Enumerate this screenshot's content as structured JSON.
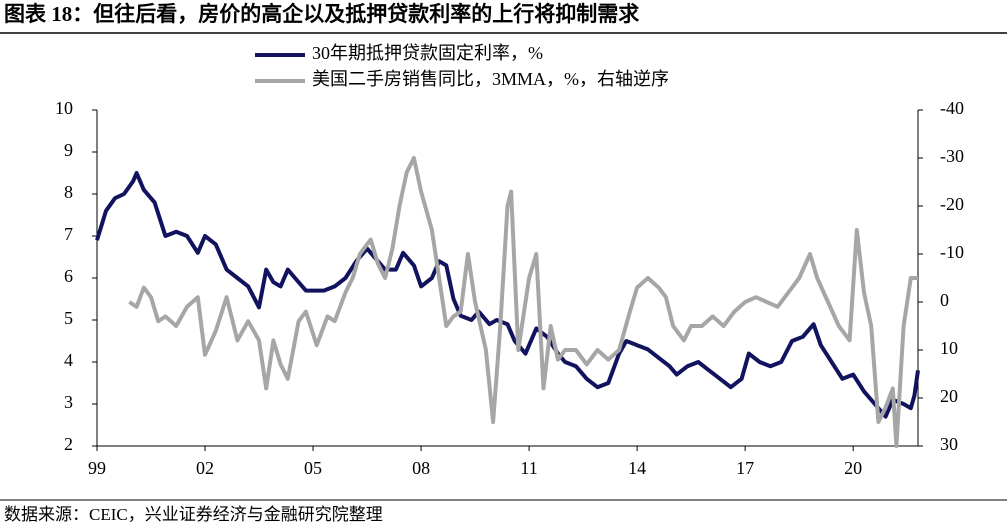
{
  "chart_data": {
    "type": "line",
    "title": "图表 18：但往后看，房价的高企以及抵押贷款利率的上行将抑制需求",
    "source": "数据来源：CEIC，兴业证券经济与金融研究院整理",
    "xlim": [
      1999,
      2021.8
    ],
    "xticks": [
      {
        "value": 1999,
        "label": "99"
      },
      {
        "value": 2002,
        "label": "02"
      },
      {
        "value": 2005,
        "label": "05"
      },
      {
        "value": 2008,
        "label": "08"
      },
      {
        "value": 2011,
        "label": "11"
      },
      {
        "value": 2014,
        "label": "14"
      },
      {
        "value": 2017,
        "label": "17"
      },
      {
        "value": 2020,
        "label": "20"
      }
    ],
    "ylim": [
      2,
      10
    ],
    "yticks": [
      2,
      3,
      4,
      5,
      6,
      7,
      8,
      9,
      10
    ],
    "y2lim": [
      30,
      -40
    ],
    "y2ticks": [
      30,
      20,
      10,
      0,
      -10,
      -20,
      -30,
      -40
    ],
    "series": [
      {
        "name": "30年期抵押贷款固定利率，%",
        "color": "#12135e",
        "axis": "y",
        "x": [
          1999.0,
          1999.25,
          1999.5,
          1999.75,
          2000.0,
          2000.1,
          2000.3,
          2000.6,
          2000.9,
          2001.2,
          2001.5,
          2001.8,
          2002.0,
          2002.3,
          2002.6,
          2002.9,
          2003.2,
          2003.5,
          2003.7,
          2003.9,
          2004.1,
          2004.3,
          2004.5,
          2004.8,
          2005.0,
          2005.3,
          2005.6,
          2005.9,
          2006.2,
          2006.5,
          2006.8,
          2007.0,
          2007.3,
          2007.5,
          2007.8,
          2008.0,
          2008.3,
          2008.5,
          2008.7,
          2008.9,
          2009.1,
          2009.4,
          2009.6,
          2009.9,
          2010.1,
          2010.4,
          2010.6,
          2010.9,
          2011.2,
          2011.5,
          2011.8,
          2012.0,
          2012.3,
          2012.6,
          2012.9,
          2013.2,
          2013.5,
          2013.7,
          2014.0,
          2014.3,
          2014.6,
          2014.9,
          2015.1,
          2015.4,
          2015.7,
          2016.0,
          2016.3,
          2016.6,
          2016.9,
          2017.1,
          2017.4,
          2017.7,
          2018.0,
          2018.3,
          2018.6,
          2018.9,
          2019.1,
          2019.4,
          2019.7,
          2020.0,
          2020.3,
          2020.6,
          2020.9,
          2021.1,
          2021.4,
          2021.6,
          2021.7,
          2021.8
        ],
        "values": [
          6.9,
          7.6,
          7.9,
          8.0,
          8.3,
          8.5,
          8.1,
          7.8,
          7.0,
          7.1,
          7.0,
          6.6,
          7.0,
          6.8,
          6.2,
          6.0,
          5.8,
          5.3,
          6.2,
          5.9,
          5.8,
          6.2,
          6.0,
          5.7,
          5.7,
          5.7,
          5.8,
          6.0,
          6.4,
          6.7,
          6.4,
          6.2,
          6.2,
          6.6,
          6.3,
          5.8,
          6.0,
          6.4,
          6.3,
          5.5,
          5.1,
          5.0,
          5.2,
          4.9,
          5.0,
          4.9,
          4.5,
          4.2,
          4.8,
          4.6,
          4.2,
          4.0,
          3.9,
          3.6,
          3.4,
          3.5,
          4.2,
          4.5,
          4.4,
          4.3,
          4.1,
          3.9,
          3.7,
          3.9,
          4.0,
          3.8,
          3.6,
          3.4,
          3.6,
          4.2,
          4.0,
          3.9,
          4.0,
          4.5,
          4.6,
          4.9,
          4.4,
          4.0,
          3.6,
          3.7,
          3.3,
          3.0,
          2.7,
          3.1,
          3.0,
          2.9,
          3.2,
          3.8
        ]
      },
      {
        "name": "美国二手房销售同比，3MMA，%，右轴逆序",
        "color": "#a6a6a6",
        "axis": "y2",
        "x": [
          1999.9,
          2000.1,
          2000.3,
          2000.5,
          2000.7,
          2000.9,
          2001.2,
          2001.5,
          2001.8,
          2002.0,
          2002.3,
          2002.6,
          2002.9,
          2003.2,
          2003.5,
          2003.7,
          2003.9,
          2004.1,
          2004.3,
          2004.6,
          2004.8,
          2005.1,
          2005.4,
          2005.6,
          2005.9,
          2006.1,
          2006.3,
          2006.6,
          2006.8,
          2007.0,
          2007.2,
          2007.4,
          2007.6,
          2007.8,
          2008.0,
          2008.3,
          2008.5,
          2008.7,
          2008.9,
          2009.1,
          2009.3,
          2009.5,
          2009.8,
          2010.0,
          2010.2,
          2010.4,
          2010.5,
          2010.7,
          2011.0,
          2011.2,
          2011.4,
          2011.6,
          2011.8,
          2012.0,
          2012.3,
          2012.6,
          2012.9,
          2013.2,
          2013.5,
          2013.8,
          2014.0,
          2014.3,
          2014.6,
          2014.8,
          2015.0,
          2015.3,
          2015.5,
          2015.8,
          2016.1,
          2016.4,
          2016.7,
          2017.0,
          2017.3,
          2017.6,
          2017.9,
          2018.2,
          2018.5,
          2018.8,
          2019.0,
          2019.3,
          2019.6,
          2019.9,
          2020.1,
          2020.3,
          2020.5,
          2020.7,
          2020.9,
          2021.1,
          2021.2,
          2021.4,
          2021.6,
          2021.8
        ],
        "values": [
          0,
          1,
          -3,
          -1,
          4,
          3,
          5,
          1,
          -1,
          11,
          6,
          -1,
          8,
          4,
          8,
          18,
          8,
          13,
          16,
          4,
          2,
          9,
          3,
          4,
          -2,
          -5,
          -10,
          -13,
          -8,
          -5,
          -11,
          -20,
          -27,
          -30,
          -23,
          -15,
          -5,
          5,
          3,
          2,
          -10,
          0,
          10,
          25,
          5,
          -20,
          -23,
          10,
          -5,
          -10,
          18,
          5,
          12,
          10,
          10,
          13,
          10,
          12,
          10,
          2,
          -3,
          -5,
          -3,
          -1,
          5,
          8,
          5,
          5,
          3,
          5,
          2,
          0,
          -1,
          0,
          1,
          -2,
          -5,
          -10,
          -5,
          0,
          5,
          8,
          -15,
          -2,
          5,
          25,
          22,
          18,
          30,
          5,
          -5,
          -5
        ]
      }
    ]
  }
}
